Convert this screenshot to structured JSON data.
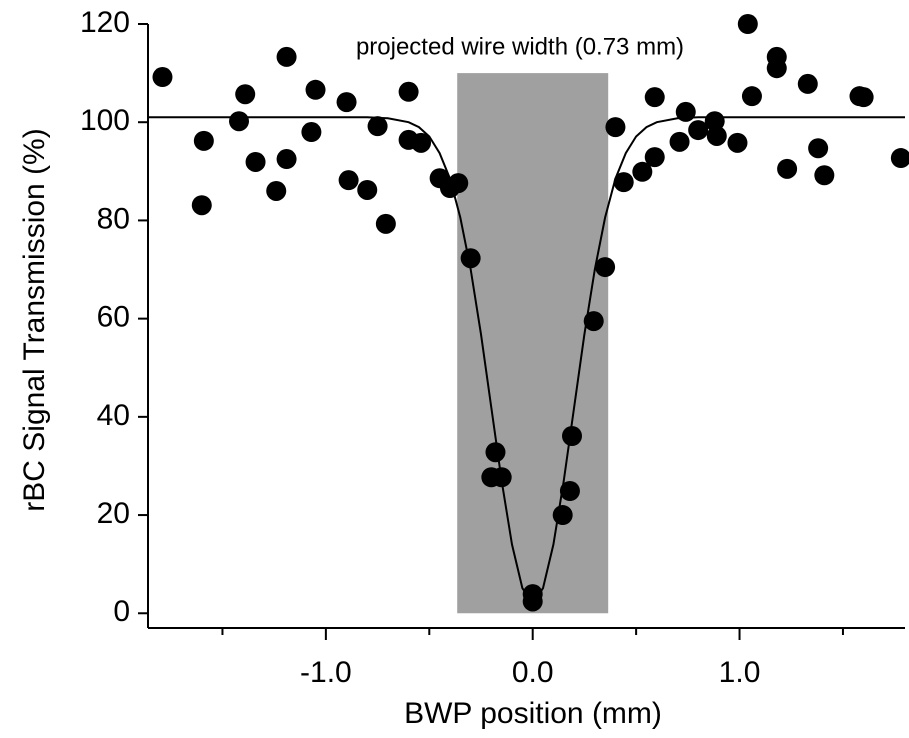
{
  "chart_data": {
    "type": "scatter",
    "xlabel": "BWP position (mm)",
    "ylabel": "rBC Signal Transmission (%)",
    "annotation": "projected wire width (0.73 mm)",
    "shaded_region": {
      "x": [
        -0.365,
        0.365
      ],
      "y": [
        0,
        110
      ],
      "color": "#a0a0a0"
    },
    "xlim": [
      -1.86,
      1.8
    ],
    "ylim": [
      -3,
      120
    ],
    "xticks": [
      {
        "value": -1,
        "label": "-1.0"
      },
      {
        "value": 0,
        "label": "0.0"
      },
      {
        "value": 1,
        "label": "1.0"
      }
    ],
    "xminorticks": [
      -1.5,
      -0.5,
      0.5,
      1.5
    ],
    "yticks": [
      0,
      20,
      40,
      60,
      80,
      100,
      120
    ],
    "points": {
      "color": "#000000",
      "x": [
        -1.79,
        -1.59,
        -1.6,
        -1.39,
        -1.42,
        -1.34,
        -1.24,
        -1.19,
        -1.19,
        -1.05,
        -1.07,
        -0.9,
        -0.89,
        -0.8,
        -0.75,
        -0.71,
        -0.6,
        -0.6,
        -0.54,
        -0.45,
        -0.4,
        -0.36,
        -0.3,
        -0.18,
        -0.2,
        -0.15,
        0.0,
        0.0,
        0.145,
        0.18,
        0.19,
        0.295,
        0.35,
        0.4,
        0.44,
        0.53,
        0.59,
        0.59,
        0.71,
        0.74,
        0.8,
        0.88,
        0.89,
        0.99,
        1.04,
        1.06,
        1.18,
        1.18,
        1.23,
        1.33,
        1.38,
        1.41,
        1.58,
        1.6,
        1.78
      ],
      "y": [
        109.2,
        96.2,
        83.1,
        105.7,
        100.2,
        91.9,
        86.0,
        113.3,
        92.5,
        106.6,
        98.0,
        104.1,
        88.2,
        86.2,
        99.2,
        79.3,
        106.2,
        96.4,
        95.8,
        88.6,
        86.6,
        87.6,
        72.3,
        32.8,
        27.7,
        27.7,
        3.9,
        2.4,
        20.0,
        24.9,
        36.1,
        59.5,
        70.5,
        99.0,
        87.8,
        89.9,
        92.9,
        105.1,
        96.0,
        102.1,
        98.4,
        100.2,
        97.2,
        95.8,
        120.0,
        105.3,
        113.3,
        111.0,
        90.5,
        107.8,
        94.7,
        89.2,
        105.3,
        105.1,
        92.7
      ]
    },
    "fit": {
      "color": "#000000",
      "x": [
        -1.86,
        -0.8,
        -0.7,
        -0.6,
        -0.55,
        -0.5,
        -0.45,
        -0.4,
        -0.35,
        -0.3,
        -0.25,
        -0.2,
        -0.15,
        -0.1,
        -0.05,
        0,
        0.05,
        0.1,
        0.15,
        0.2,
        0.25,
        0.3,
        0.35,
        0.4,
        0.45,
        0.5,
        0.55,
        0.6,
        0.7,
        0.8,
        1.8
      ],
      "values": [
        101.0,
        101.0,
        100.8,
        100.0,
        99.0,
        97.1,
        93.7,
        88.5,
        80.6,
        70.0,
        56.8,
        41.9,
        26.9,
        14.0,
        5.1,
        2.0,
        5.1,
        14.0,
        26.9,
        41.9,
        56.8,
        70.0,
        80.6,
        88.5,
        93.7,
        97.1,
        99.0,
        100.0,
        100.8,
        101.0,
        101.0
      ]
    }
  }
}
